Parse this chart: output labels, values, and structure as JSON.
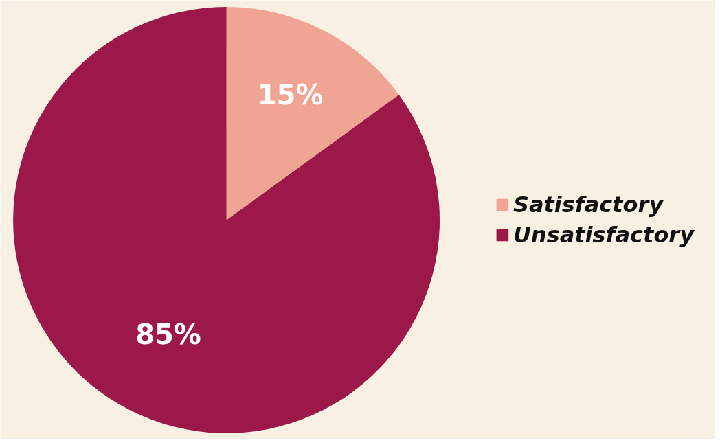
{
  "chart_data": {
    "type": "pie",
    "categories": [
      "Satisfactory",
      "Unsatisfactory"
    ],
    "values": [
      15,
      85
    ],
    "colors": [
      "#f0a594",
      "#9c1848"
    ],
    "value_labels": [
      "15%",
      "85%"
    ],
    "legend": "right"
  }
}
